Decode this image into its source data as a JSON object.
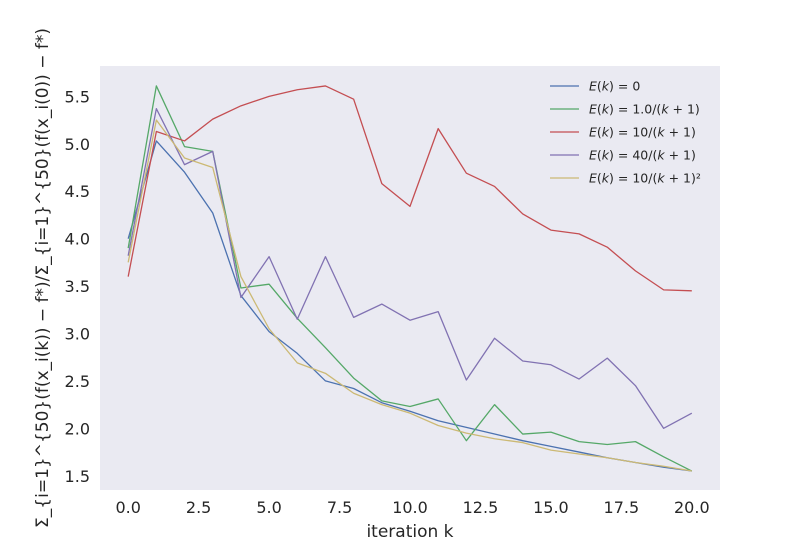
{
  "chart_data": {
    "type": "line",
    "title": "",
    "xlabel": "iteration k",
    "ylabel": "Σ_{i=1}^{50}(f(x_i(k)) − f*)/Σ_{i=1}^{50}(f(x_i(0)) − f*)",
    "xlim": [
      -1.0,
      21.0
    ],
    "ylim": [
      1.35,
      5.82
    ],
    "grid": false,
    "legend": "top-right",
    "x": [
      0,
      1,
      2,
      3,
      4,
      5,
      6,
      7,
      8,
      9,
      10,
      11,
      12,
      13,
      14,
      15,
      16,
      17,
      18,
      19,
      20
    ],
    "xticks": [
      "0.0",
      "2.5",
      "5.0",
      "7.5",
      "10.0",
      "12.5",
      "15.0",
      "17.5",
      "20.0"
    ],
    "yticks": [
      "1.5",
      "2.0",
      "2.5",
      "3.0",
      "3.5",
      "4.0",
      "4.5",
      "5.0",
      "5.5"
    ],
    "series": [
      {
        "name": "E(k) = 0",
        "name_parts": [
          "E",
          "(",
          "k",
          ") = 0"
        ],
        "color": "#4c72b0",
        "values": [
          4.0,
          5.03,
          4.7,
          4.27,
          3.4,
          3.02,
          2.79,
          2.5,
          2.42,
          2.27,
          2.18,
          2.08,
          2.01,
          1.94,
          1.87,
          1.81,
          1.75,
          1.69,
          1.64,
          1.59,
          1.55
        ]
      },
      {
        "name": "E(k) = 1.0/(k + 1)",
        "name_parts": [
          "E",
          "(",
          "k",
          ") = 1.0/(",
          "k",
          " + 1)"
        ],
        "color": "#55a868",
        "values": [
          3.9,
          5.61,
          4.97,
          4.92,
          3.48,
          3.52,
          3.16,
          2.85,
          2.53,
          2.29,
          2.23,
          2.31,
          1.87,
          2.25,
          1.94,
          1.96,
          1.86,
          1.83,
          1.86,
          1.7,
          1.55
        ]
      },
      {
        "name": "E(k) = 10/(k + 1)",
        "name_parts": [
          "E",
          "(",
          "k",
          ") = 10/(",
          "k",
          " + 1)"
        ],
        "color": "#c44e52",
        "values": [
          3.6,
          5.13,
          5.03,
          5.26,
          5.4,
          5.5,
          5.57,
          5.61,
          5.47,
          4.58,
          4.34,
          5.16,
          4.69,
          4.55,
          4.26,
          4.09,
          4.05,
          3.91,
          3.66,
          3.46,
          3.45
        ]
      },
      {
        "name": "E(k) = 40/(k + 1)",
        "name_parts": [
          "E",
          "(",
          "k",
          ") = 40/(",
          "k",
          " + 1)"
        ],
        "color": "#8172b2",
        "values": [
          3.82,
          5.37,
          4.78,
          4.92,
          3.38,
          3.81,
          3.15,
          3.81,
          3.17,
          3.31,
          3.14,
          3.23,
          2.51,
          2.95,
          2.71,
          2.67,
          2.52,
          2.74,
          2.45,
          2.0,
          2.16
        ]
      },
      {
        "name": "E(k) = 10/(k + 1)^2",
        "name_parts": [
          "E",
          "(",
          "k",
          ") = 10/(",
          "k",
          " + 1)²"
        ],
        "color": "#ccb974",
        "values": [
          3.75,
          5.25,
          4.85,
          4.75,
          3.6,
          3.05,
          2.69,
          2.58,
          2.37,
          2.25,
          2.16,
          2.03,
          1.95,
          1.89,
          1.85,
          1.77,
          1.73,
          1.69,
          1.64,
          1.6,
          1.55
        ]
      }
    ]
  },
  "colors": {
    "plot_background": "#eaeaf2",
    "text": "#262626"
  }
}
